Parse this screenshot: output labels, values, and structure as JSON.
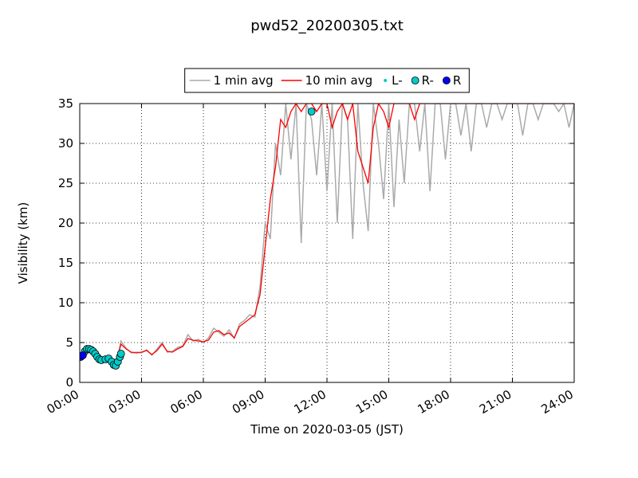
{
  "chart_data": {
    "type": "line",
    "title": "pwd52_20200305.txt",
    "x_label": "Time on 2020-03-05 (JST)",
    "y_label": "Visibility (km)",
    "xlim": [
      0,
      24
    ],
    "ylim": [
      0,
      35
    ],
    "xticks": [
      {
        "value": 0,
        "label": "00:00"
      },
      {
        "value": 3,
        "label": "03:00"
      },
      {
        "value": 6,
        "label": "06:00"
      },
      {
        "value": 9,
        "label": "09:00"
      },
      {
        "value": 12,
        "label": "12:00"
      },
      {
        "value": 15,
        "label": "15:00"
      },
      {
        "value": 18,
        "label": "18:00"
      },
      {
        "value": 21,
        "label": "21:00"
      },
      {
        "value": 24,
        "label": "24:00"
      }
    ],
    "yticks": [
      0,
      5,
      10,
      15,
      20,
      25,
      30,
      35
    ],
    "grid": true,
    "legend": "top",
    "x": [
      0,
      0.25,
      0.5,
      0.75,
      1,
      1.25,
      1.5,
      1.75,
      2,
      2.25,
      2.5,
      2.75,
      3,
      3.25,
      3.5,
      3.75,
      4,
      4.25,
      4.5,
      4.75,
      5,
      5.25,
      5.5,
      5.75,
      6,
      6.25,
      6.5,
      6.75,
      7,
      7.25,
      7.5,
      7.75,
      8,
      8.25,
      8.5,
      8.75,
      9,
      9.25,
      9.5,
      9.75,
      10,
      10.25,
      10.5,
      10.75,
      11,
      11.25,
      11.5,
      11.75,
      12,
      12.25,
      12.5,
      12.75,
      13,
      13.25,
      13.5,
      13.75,
      14,
      14.25,
      14.5,
      14.75,
      15,
      15.25,
      15.5,
      15.75,
      16,
      16.25,
      16.5,
      16.75,
      17,
      17.25,
      17.5,
      17.75,
      18,
      18.25,
      18.5,
      18.75,
      19,
      19.25,
      19.5,
      19.75,
      20,
      20.25,
      20.5,
      20.75,
      21,
      21.25,
      21.5,
      21.75,
      22,
      22.25,
      22.5,
      22.75,
      23,
      23.25,
      23.5,
      23.75,
      24
    ],
    "series": [
      {
        "name": "1 min avg",
        "color": "#aaaaaa",
        "values": [
          3.2,
          3.9,
          4.3,
          3.7,
          3.1,
          2.8,
          2.9,
          2.1,
          5.2,
          4.3,
          3.7,
          3.8,
          3.7,
          4.1,
          3.4,
          4.2,
          5.0,
          3.8,
          3.9,
          4.4,
          4.6,
          6.0,
          5.2,
          5.4,
          5.0,
          5.6,
          6.8,
          6.3,
          5.8,
          6.6,
          5.5,
          7.3,
          7.8,
          8.5,
          8.2,
          12,
          20,
          18,
          30,
          26,
          35,
          28,
          35,
          17.5,
          35,
          33,
          26,
          35,
          24,
          35,
          20,
          35,
          33,
          18,
          35,
          25,
          19,
          35,
          30,
          23,
          35,
          22,
          33,
          25,
          35,
          35,
          29,
          35,
          24,
          35,
          35,
          28,
          35,
          35,
          31,
          35,
          29,
          35,
          35,
          32,
          35,
          35,
          33,
          35,
          35,
          35,
          31,
          35,
          35,
          33,
          35,
          35,
          35,
          34,
          35,
          32,
          35
        ]
      },
      {
        "name": "10 min avg",
        "color": "#ff0000",
        "values": [
          3.3,
          3.8,
          4.2,
          3.8,
          3.0,
          2.9,
          2.8,
          2.2,
          4.8,
          4.2,
          3.8,
          3.7,
          3.8,
          4.0,
          3.5,
          4.0,
          4.8,
          3.9,
          3.8,
          4.2,
          4.5,
          5.5,
          5.3,
          5.2,
          5.1,
          5.3,
          6.3,
          6.5,
          6.0,
          6.2,
          5.6,
          7.0,
          7.5,
          8.0,
          8.5,
          11,
          17,
          23,
          27,
          33,
          32,
          34,
          35,
          34,
          35,
          35,
          34,
          35,
          35,
          32,
          34,
          35,
          33,
          35,
          29,
          27,
          25,
          32,
          35,
          34,
          32,
          35,
          35,
          35,
          35,
          33,
          35,
          35,
          35,
          35,
          35,
          35,
          35,
          35,
          35,
          35,
          35,
          35,
          35,
          35,
          35,
          35,
          35,
          35,
          35,
          35,
          35,
          35,
          35,
          35,
          35,
          35,
          35,
          35,
          35,
          35,
          35
        ]
      },
      {
        "name": "L-",
        "color": "#00cccc",
        "marker": "dot",
        "x": [],
        "values": []
      },
      {
        "name": "R-",
        "color": "#00cccc",
        "marker": "circle",
        "x": [
          0.25,
          0.35,
          0.45,
          0.55,
          0.65,
          0.75,
          0.85,
          0.95,
          1.05,
          1.25,
          1.4,
          1.55,
          1.65,
          1.75,
          1.85,
          1.95,
          2.0,
          11.25
        ],
        "values": [
          3.9,
          4.2,
          4.2,
          4.1,
          3.9,
          3.6,
          3.2,
          2.9,
          2.8,
          2.9,
          3.0,
          2.6,
          2.2,
          2.1,
          2.6,
          3.2,
          3.6,
          34.0
        ]
      },
      {
        "name": "R",
        "color": "#0000ff",
        "marker": "circle",
        "x": [
          0.05,
          0.15
        ],
        "values": [
          3.2,
          3.4
        ]
      }
    ]
  }
}
